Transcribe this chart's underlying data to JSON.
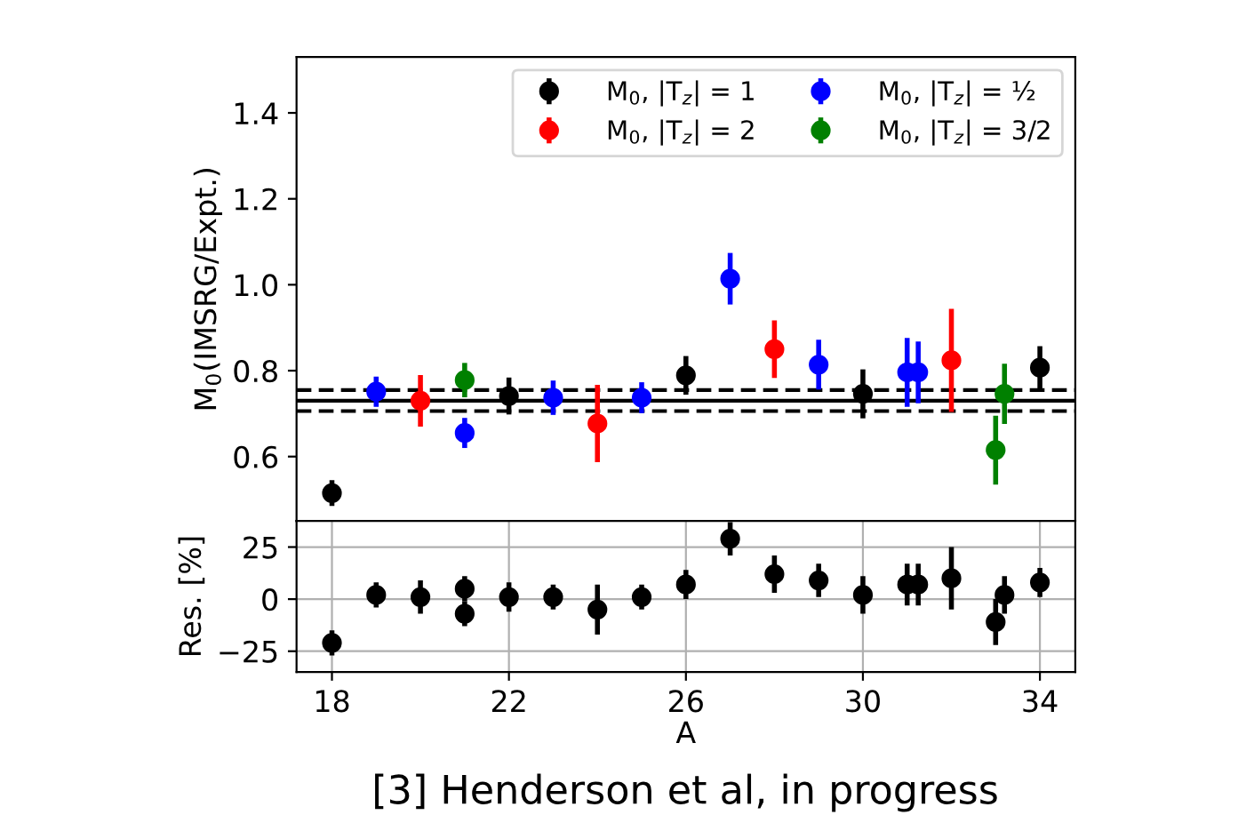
{
  "chart_data": [
    {
      "type": "scatter",
      "ylabel": "M$_{0}$(IMSRG/Expt.)",
      "xlim": [
        17.2,
        34.8
      ],
      "ylim": [
        0.45,
        1.53
      ],
      "xticks": [
        18,
        22,
        26,
        30,
        34
      ],
      "yticks": [
        0.6,
        0.8,
        {
          "value": 1.0,
          "label": "1.0"
        },
        1.2,
        1.4
      ],
      "tick_labels": "y",
      "grid": false,
      "legend": "top right",
      "marker": "circle",
      "series": [
        {
          "name": "M$_{0}$, |T$_{z}$| = 1",
          "color": "#000000",
          "x": [
            18,
            22,
            26,
            30,
            34
          ],
          "values": [
            0.515,
            0.741,
            0.789,
            0.746,
            0.807
          ],
          "errors": [
            0.03,
            0.043,
            0.045,
            0.057,
            0.05
          ]
        },
        {
          "name": "M$_{0}$, |T$_{z}$| = 2",
          "color": "#ff0000",
          "x": [
            20,
            24,
            28,
            32
          ],
          "values": [
            0.73,
            0.677,
            0.85,
            0.824
          ],
          "errors": [
            0.06,
            0.09,
            0.067,
            0.12
          ]
        },
        {
          "name": "M$_{0}$, |T$_{z}$| = ½",
          "color": "#0000ff",
          "x": [
            19,
            21,
            23,
            25,
            27,
            29,
            31,
            31.25
          ],
          "values": [
            0.751,
            0.655,
            0.737,
            0.737,
            1.014,
            0.814,
            0.796,
            0.796
          ],
          "errors": [
            0.035,
            0.035,
            0.04,
            0.036,
            0.06,
            0.058,
            0.08,
            0.072
          ]
        },
        {
          "name": "M$_{0}$, |T$_{z}$| = 3/2",
          "color": "#008000",
          "x": [
            21,
            33,
            33.2
          ],
          "values": [
            0.778,
            0.615,
            0.746
          ],
          "errors": [
            0.04,
            0.08,
            0.07
          ]
        }
      ],
      "ref_lines": [
        {
          "axis": "y",
          "value": 0.73,
          "color": "#000000",
          "line_style": "solid"
        },
        {
          "axis": "y",
          "value": 0.755,
          "color": "#000000",
          "line_style": "dashed"
        },
        {
          "axis": "y",
          "value": 0.706,
          "color": "#000000",
          "line_style": "dashed"
        }
      ]
    },
    {
      "type": "scatter",
      "xlabel": "A",
      "ylabel": "Res. [%]",
      "xlim": [
        17.2,
        34.8
      ],
      "ylim": [
        -35,
        37.5
      ],
      "xticks": [
        18,
        22,
        26,
        30,
        34
      ],
      "yticks": [
        {
          "value": -25,
          "label": "−25"
        },
        0,
        25
      ],
      "grid": true,
      "marker": "circle",
      "series": [
        {
          "color": "#000000",
          "x": [
            18,
            19,
            20,
            21,
            21,
            22,
            23,
            24,
            25,
            26,
            27,
            28,
            29,
            30,
            31,
            31.25,
            32,
            33,
            33.2,
            34
          ],
          "values": [
            -21,
            2,
            1,
            5,
            -7,
            1,
            1,
            -5,
            1,
            7,
            29,
            12,
            9,
            2,
            7,
            7,
            10,
            -11,
            2,
            8
          ],
          "errors": [
            6,
            6,
            8,
            6,
            6,
            7,
            6,
            12,
            6,
            7,
            8,
            9,
            8,
            9,
            10,
            10,
            15,
            11,
            9,
            7
          ]
        }
      ],
      "annotations": [
        "[3] Henderson et al, in progress"
      ]
    }
  ]
}
